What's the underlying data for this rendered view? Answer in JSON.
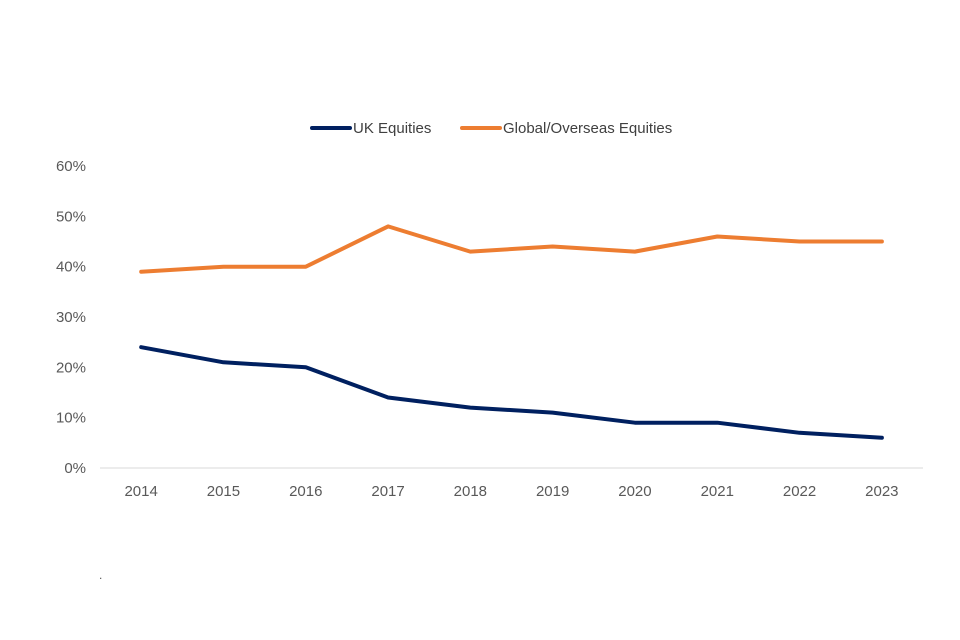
{
  "chart_data": {
    "type": "line",
    "title": "",
    "xlabel": "",
    "ylabel": "",
    "categories": [
      "2014",
      "2015",
      "2016",
      "2017",
      "2018",
      "2019",
      "2020",
      "2021",
      "2022",
      "2023"
    ],
    "series": [
      {
        "name": "UK Equities",
        "color": "#002060",
        "values": [
          24,
          21,
          20,
          14,
          12,
          11,
          9,
          9,
          7,
          6
        ]
      },
      {
        "name": "Global/Overseas Equities",
        "color": "#ED7D31",
        "values": [
          39,
          40,
          40,
          48,
          43,
          44,
          43,
          46,
          45,
          45
        ]
      }
    ],
    "ylim": [
      0,
      60
    ],
    "yticks": [
      0,
      10,
      20,
      30,
      40,
      50,
      60
    ],
    "ytick_labels": [
      "0%",
      "10%",
      "20%",
      "30%",
      "40%",
      "50%",
      "60%"
    ],
    "grid": false,
    "legend_position": "top-center"
  },
  "footnote": "."
}
